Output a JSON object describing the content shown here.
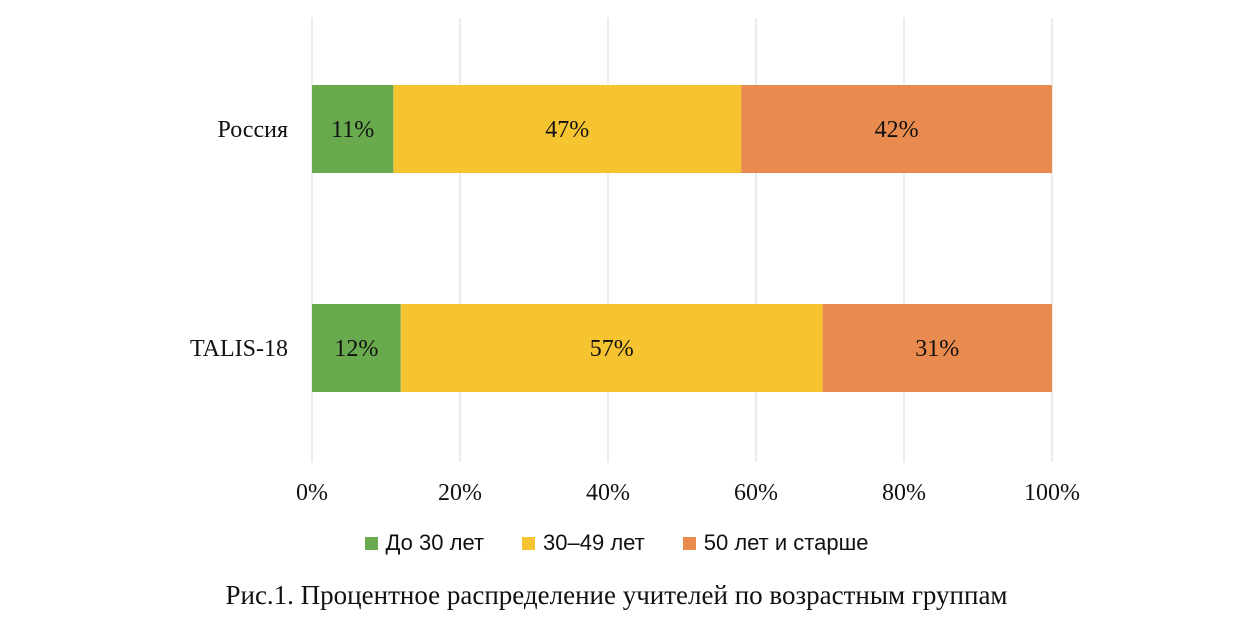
{
  "chart_data": {
    "type": "bar",
    "orientation": "horizontal",
    "stacked": true,
    "categories": [
      "Россия",
      "TALIS-18"
    ],
    "series": [
      {
        "name": "До 30 лет",
        "color": "#6aaa4f",
        "values": [
          11,
          12
        ],
        "labels": [
          "11%",
          "12%"
        ]
      },
      {
        "name": "30–49 лет",
        "color": "#f7c431",
        "values": [
          47,
          57
        ],
        "labels": [
          "47%",
          "57%"
        ]
      },
      {
        "name": "50 лет и старше",
        "color": "#e98a4e",
        "values": [
          42,
          31
        ],
        "labels": [
          "42%",
          "31%"
        ]
      }
    ],
    "xlim": [
      0,
      100
    ],
    "xticks": [
      0,
      20,
      40,
      60,
      80,
      100
    ],
    "xtick_labels": [
      "0%",
      "20%",
      "40%",
      "60%",
      "80%",
      "100%"
    ],
    "grid": true,
    "legend_position": "bottom"
  },
  "caption": "Рис.1. Процентное распределение учителей по возрастным группам"
}
